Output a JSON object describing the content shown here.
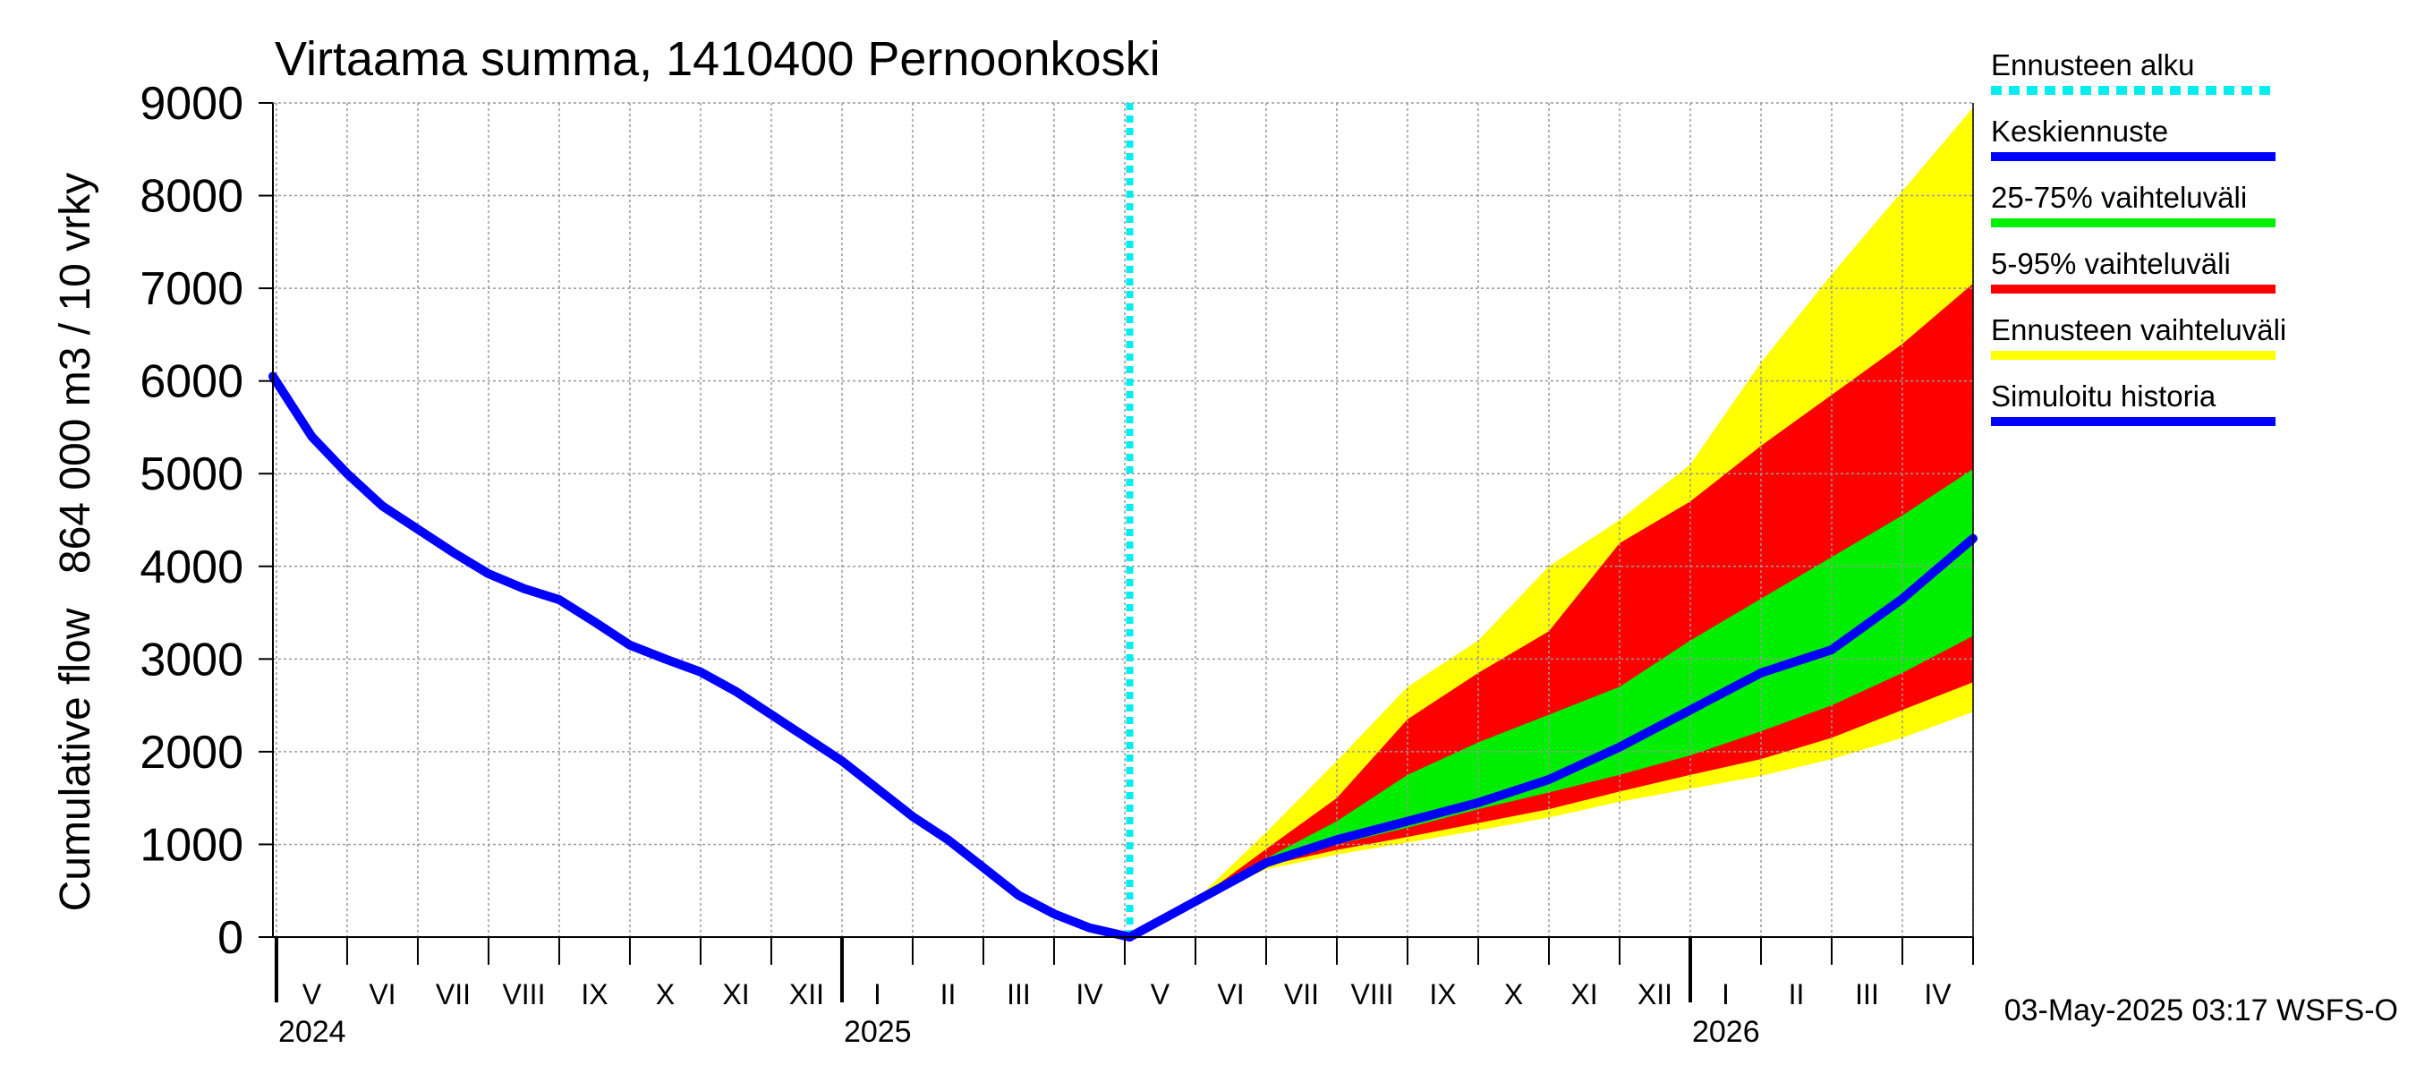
{
  "chart_data": {
    "type": "area",
    "title": "Virtaama summa, 1410400 Pernoonkoski",
    "ylabel_lines": [
      "Cumulative flow",
      "864 000 m3 / 10 vrky"
    ],
    "ylim": [
      0,
      9000
    ],
    "yticks": [
      0,
      1000,
      2000,
      3000,
      4000,
      5000,
      6000,
      7000,
      8000,
      9000
    ],
    "x_unit": "months since 2024-04-01",
    "xlim": [
      0.95,
      25.0
    ],
    "month_labels": [
      "V",
      "VI",
      "VII",
      "VIII",
      "IX",
      "X",
      "XI",
      "XII",
      "I",
      "II",
      "III",
      "IV",
      "V",
      "VI",
      "VII",
      "VIII",
      "IX",
      "X",
      "XI",
      "XII",
      "I",
      "II",
      "III",
      "IV"
    ],
    "year_labels": [
      {
        "label": "2024",
        "x": 1
      },
      {
        "label": "2025",
        "x": 9
      },
      {
        "label": "2026",
        "x": 21
      }
    ],
    "forecast_start_x": 13.07,
    "footer": "03-May-2025 03:17 WSFS-O",
    "colors": {
      "history": "#0000ff",
      "forecast_start": "#00eeee",
      "range_full": "#ffff00",
      "range_5_95": "#ff0000",
      "range_25_75": "#00ee00",
      "median": "#0000ff",
      "grid": "#999999"
    },
    "legend": [
      {
        "label": "Ennusteen alku",
        "color": "#00eeee",
        "style": "dashed"
      },
      {
        "label": "Keskiennuste",
        "color": "#0000ff",
        "style": "solid"
      },
      {
        "label": "25-75% vaihteluväli",
        "color": "#00ee00",
        "style": "solid"
      },
      {
        "label": "5-95% vaihteluväli",
        "color": "#ff0000",
        "style": "solid"
      },
      {
        "label": "Ennusteen vaihteluväli",
        "color": "#ffff00",
        "style": "solid"
      },
      {
        "label": "Simuloitu historia",
        "color": "#0000ff",
        "style": "solid"
      }
    ],
    "history": {
      "x": [
        0.95,
        1.5,
        2.0,
        2.5,
        3.0,
        3.5,
        4.0,
        4.5,
        5.0,
        5.5,
        6.0,
        6.5,
        7.0,
        7.5,
        8.0,
        8.5,
        9.0,
        9.5,
        10.0,
        10.5,
        11.0,
        11.5,
        12.0,
        12.5,
        13.07
      ],
      "y": [
        6050,
        5400,
        5000,
        4650,
        4400,
        4150,
        3920,
        3760,
        3640,
        3400,
        3150,
        3000,
        2860,
        2650,
        2400,
        2150,
        1900,
        1600,
        1300,
        1050,
        750,
        450,
        250,
        100,
        0
      ]
    },
    "forecast": {
      "x": [
        13.07,
        14.0,
        15.0,
        16.0,
        17.0,
        18.0,
        19.0,
        20.0,
        21.0,
        22.0,
        23.0,
        24.0,
        25.0
      ],
      "full_low": [
        0,
        380,
        730,
        890,
        1020,
        1150,
        1290,
        1460,
        1600,
        1740,
        1920,
        2150,
        2430
      ],
      "full_high": [
        0,
        400,
        1130,
        1900,
        2700,
        3200,
        4000,
        4500,
        5100,
        6200,
        7150,
        8050,
        8950
      ],
      "p05": [
        0,
        380,
        770,
        940,
        1080,
        1230,
        1380,
        1570,
        1750,
        1920,
        2150,
        2450,
        2750
      ],
      "p95": [
        0,
        390,
        950,
        1500,
        2350,
        2850,
        3300,
        4250,
        4700,
        5300,
        5850,
        6400,
        7050
      ],
      "p25": [
        0,
        385,
        780,
        1000,
        1180,
        1380,
        1560,
        1750,
        1960,
        2220,
        2500,
        2850,
        3250
      ],
      "p75": [
        0,
        390,
        850,
        1250,
        1750,
        2100,
        2400,
        2700,
        3200,
        3650,
        4100,
        4550,
        5050
      ],
      "median": [
        0,
        385,
        800,
        1050,
        1250,
        1450,
        1700,
        2050,
        2450,
        2850,
        3100,
        3650,
        4300
      ]
    }
  }
}
